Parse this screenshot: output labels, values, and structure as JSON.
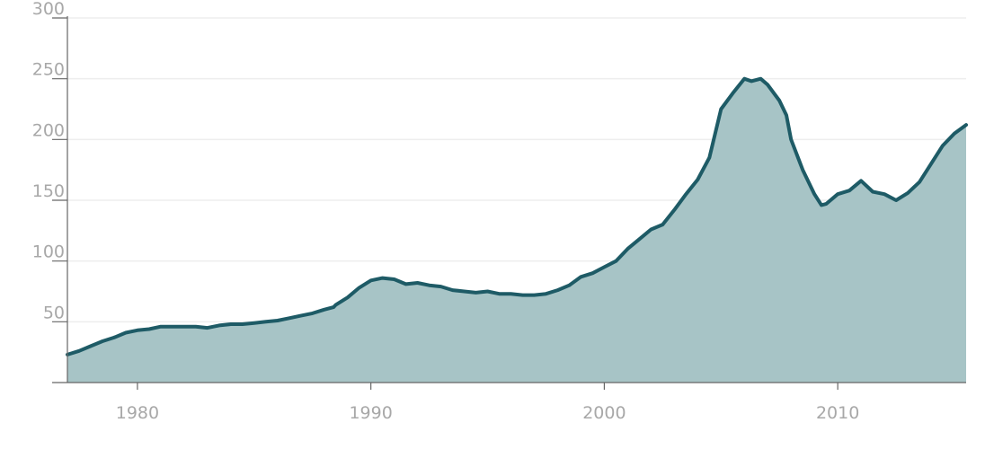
{
  "chart_data": {
    "type": "area",
    "title": "",
    "xlabel": "",
    "ylabel": "",
    "xlim": [
      1977.0,
      2015.5
    ],
    "ylim": [
      0,
      300
    ],
    "grid": true,
    "legend": "none",
    "colors": {
      "line": "#1e5b66",
      "fill": "#a7c4c6",
      "grid": "#eeeeee",
      "axis": "#666666",
      "tick_text": "#a8a8a8"
    },
    "y_ticks": [
      {
        "value": 50,
        "label": "50"
      },
      {
        "value": 100,
        "label": "100"
      },
      {
        "value": 150,
        "label": "150"
      },
      {
        "value": 200,
        "label": "200"
      },
      {
        "value": 250,
        "label": "250"
      },
      {
        "value": 300,
        "label": "300"
      }
    ],
    "x_ticks": [
      {
        "value": 1980,
        "label": "1980"
      },
      {
        "value": 1990,
        "label": "1990"
      },
      {
        "value": 2000,
        "label": "2000"
      },
      {
        "value": 2010,
        "label": "2010"
      }
    ],
    "series": [
      {
        "x": [
          1977.0,
          1977.5,
          1978.0,
          1978.5,
          1979.0,
          1979.5,
          1980.0,
          1980.5,
          1981.0,
          1981.5,
          1982.0,
          1982.5,
          1983.0,
          1983.5,
          1984.0,
          1984.5,
          1985.0,
          1985.5,
          1986.0,
          1986.5,
          1987.0,
          1987.5,
          1988.0,
          1988.4,
          1988.5,
          1989.0,
          1989.5,
          1990.0,
          1990.5,
          1991.0,
          1991.5,
          1992.0,
          1992.5,
          1993.0,
          1993.5,
          1994.0,
          1994.5,
          1995.0,
          1995.5,
          1996.0,
          1996.5,
          1997.0,
          1997.5,
          1998.0,
          1998.5,
          1999.0,
          1999.5,
          2000.0,
          2000.5,
          2001.0,
          2001.5,
          2002.0,
          2002.5,
          2003.0,
          2003.5,
          2004.0,
          2004.5,
          2005.0,
          2005.5,
          2006.0,
          2006.3,
          2006.7,
          2007.0,
          2007.5,
          2007.8,
          2008.0,
          2008.5,
          2009.0,
          2009.3,
          2009.5,
          2010.0,
          2010.5,
          2011.0,
          2011.5,
          2012.0,
          2012.5,
          2013.0,
          2013.5,
          2014.0,
          2014.5,
          2015.0,
          2015.5
        ],
        "values": [
          23,
          26,
          30,
          34,
          37,
          41,
          43,
          44,
          46,
          46,
          46,
          46,
          45,
          47,
          48,
          48,
          49,
          50,
          51,
          53,
          55,
          57,
          60,
          62,
          64,
          70,
          78,
          84,
          86,
          85,
          81,
          82,
          80,
          79,
          76,
          75,
          74,
          75,
          73,
          73,
          72,
          72,
          73,
          76,
          80,
          87,
          90,
          95,
          100,
          110,
          118,
          126,
          130,
          142,
          155,
          167,
          185,
          225,
          238,
          250,
          248,
          250,
          245,
          232,
          220,
          200,
          175,
          155,
          146,
          147,
          155,
          158,
          166,
          157,
          155,
          150,
          156,
          165,
          180,
          195,
          205,
          212
        ]
      }
    ]
  }
}
